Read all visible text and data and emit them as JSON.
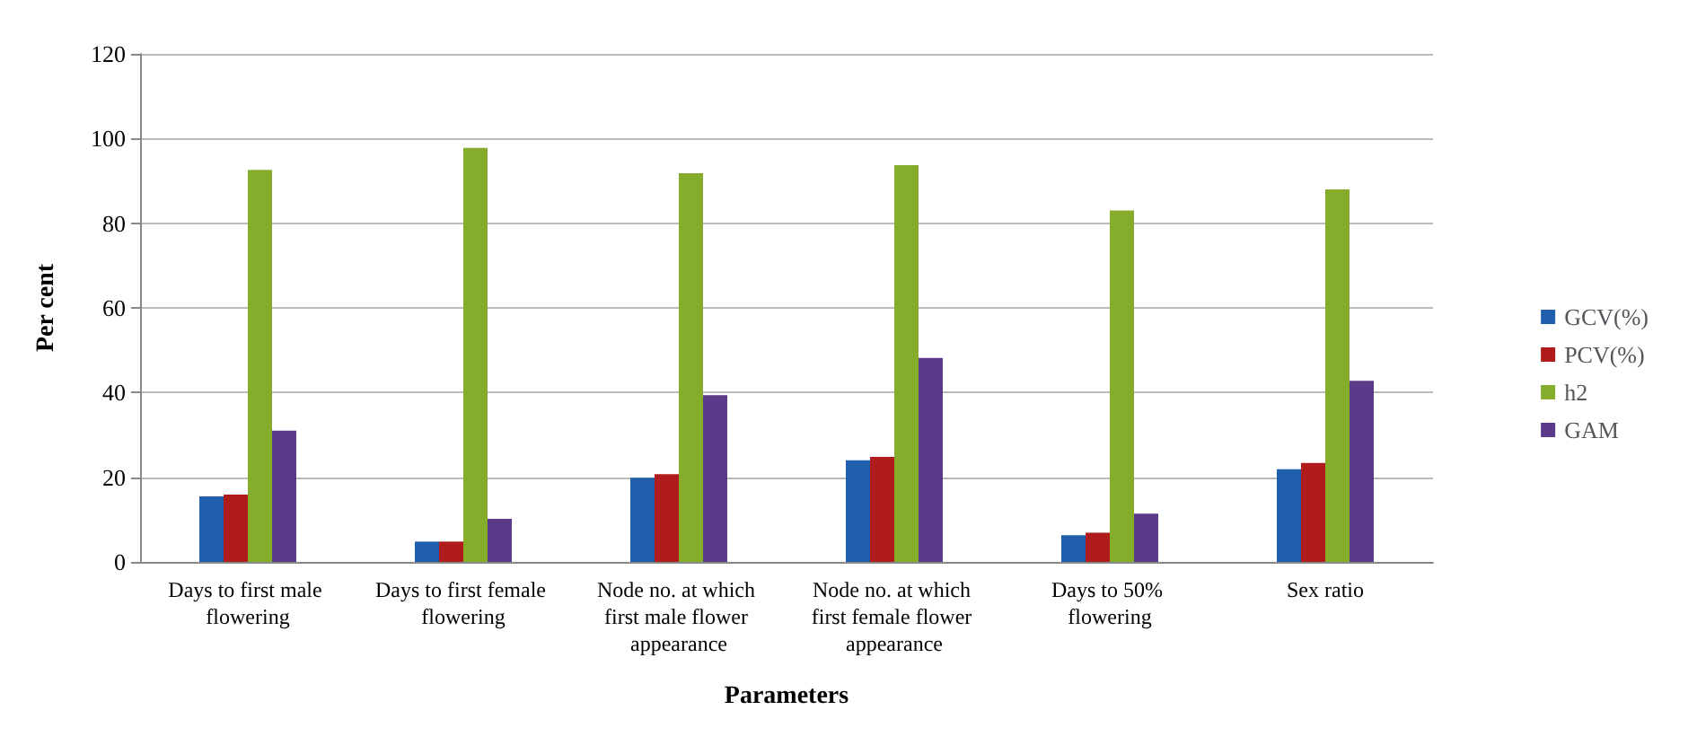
{
  "chart_data": {
    "type": "bar",
    "xlabel": "Parameters",
    "ylabel": "Per cent",
    "categories": [
      "Days to first male flowering",
      "Days to first female flowering",
      "Node no. at which first male flower appearance",
      "Node no. at which first female flower appearance",
      "Days to 50% flowering",
      "Sex ratio"
    ],
    "series": [
      {
        "name": "GCV(%)",
        "color": "#1f5fae",
        "values": [
          15.5,
          4.8,
          19.9,
          24,
          6.3,
          21.9
        ]
      },
      {
        "name": "PCV(%)",
        "color": "#b01c1c",
        "values": [
          15.9,
          4.8,
          20.7,
          24.8,
          6.9,
          23.4
        ]
      },
      {
        "name": "h2",
        "color": "#86ac2c",
        "values": [
          92.6,
          97.8,
          91.8,
          93.7,
          83,
          88
        ]
      },
      {
        "name": "GAM",
        "color": "#5b3a8a",
        "values": [
          31,
          10.2,
          39.4,
          48.2,
          11.4,
          42.8
        ]
      }
    ],
    "ylim": [
      0,
      120
    ],
    "yticks": [
      0,
      20,
      40,
      60,
      80,
      100,
      120
    ],
    "grid": "y",
    "legend": "right"
  }
}
